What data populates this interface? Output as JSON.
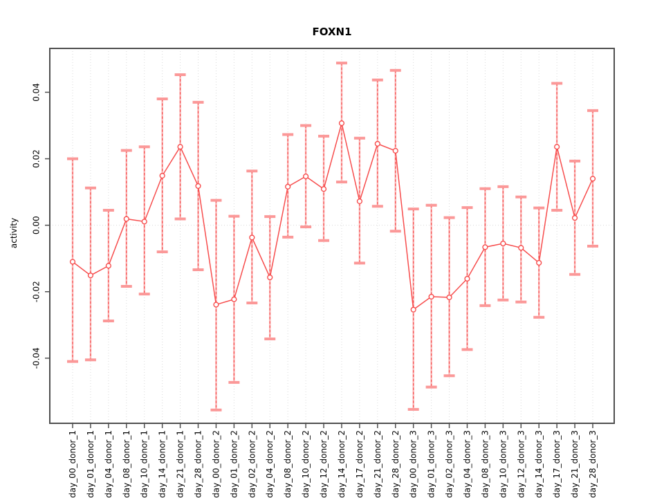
{
  "chart_data": {
    "type": "line",
    "title": "FOXN1",
    "xlabel": "",
    "ylabel": "activity",
    "categories": [
      "day_00_donor_1",
      "day_01_donor_1",
      "day_04_donor_1",
      "day_08_donor_1",
      "day_10_donor_1",
      "day_14_donor_1",
      "day_21_donor_1",
      "day_28_donor_1",
      "day_00_donor_2",
      "day_01_donor_2",
      "day_02_donor_2",
      "day_04_donor_2",
      "day_08_donor_2",
      "day_10_donor_2",
      "day_12_donor_2",
      "day_14_donor_2",
      "day_17_donor_2",
      "day_21_donor_2",
      "day_28_donor_2",
      "day_00_donor_3",
      "day_01_donor_3",
      "day_02_donor_3",
      "day_04_donor_3",
      "day_08_donor_3",
      "day_10_donor_3",
      "day_12_donor_3",
      "day_14_donor_3",
      "day_17_donor_3",
      "day_21_donor_3",
      "day_28_donor_3"
    ],
    "series": [
      {
        "name": "mean_activity",
        "values": [
          -0.011,
          -0.0151,
          -0.0122,
          0.0019,
          0.0011,
          0.0149,
          0.0236,
          0.0118,
          -0.0239,
          -0.0223,
          -0.0037,
          -0.0157,
          0.0116,
          0.0147,
          0.0109,
          0.0307,
          0.0072,
          0.0245,
          0.0224,
          -0.0254,
          -0.0215,
          -0.0217,
          -0.0161,
          -0.0066,
          -0.0055,
          -0.0068,
          -0.0113,
          0.0236,
          0.0022,
          0.014
        ]
      },
      {
        "name": "upper_error_bound",
        "values": [
          0.02,
          0.0112,
          0.0045,
          0.0225,
          0.0236,
          0.038,
          0.0453,
          0.037,
          0.0075,
          0.0027,
          0.0163,
          0.0026,
          0.0273,
          0.03,
          0.0268,
          0.0488,
          0.0262,
          0.0437,
          0.0466,
          0.0049,
          0.006,
          0.0023,
          0.0053,
          0.011,
          0.0116,
          0.0085,
          0.0052,
          0.0427,
          0.0193,
          0.0345
        ]
      },
      {
        "name": "lower_error_bound",
        "values": [
          -0.041,
          -0.0405,
          -0.0288,
          -0.0184,
          -0.0207,
          -0.008,
          0.0019,
          -0.0134,
          -0.0556,
          -0.0473,
          -0.0234,
          -0.0342,
          -0.0036,
          -0.0005,
          -0.0046,
          0.013,
          -0.0114,
          0.0057,
          -0.0018,
          -0.0554,
          -0.0487,
          -0.0453,
          -0.0374,
          -0.0242,
          -0.0225,
          -0.0231,
          -0.0277,
          0.0045,
          -0.0148,
          -0.0063
        ]
      }
    ],
    "yticks": [
      0.04,
      0.02,
      0.0,
      -0.02,
      -0.04
    ],
    "ytick_labels": [
      "0.04",
      "0.02",
      "0.00",
      "-0.02",
      "-0.04"
    ],
    "ylim": [
      -0.0596,
      0.0532
    ],
    "legend_position": "none",
    "grid": "dotted vertical line at every category; dotted horizontal line at 0",
    "point_style": "open-circle",
    "error_bars": true,
    "colors": {
      "line": "#f74c4c",
      "error_soft": "#faa0a0",
      "error_cap": "#fb9898",
      "point_fill": "#ffffff",
      "grid": "#d9d9d9",
      "frame": "#4f4f4f",
      "text": "#000000",
      "background": "#ffffff"
    }
  }
}
